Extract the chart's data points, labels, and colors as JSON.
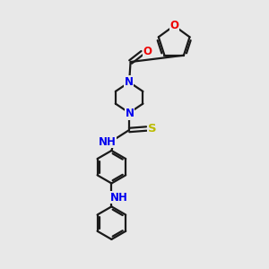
{
  "bg_color": "#e8e8e8",
  "bond_color": "#1a1a1a",
  "N_color": "#0000ee",
  "O_color": "#ee0000",
  "S_color": "#bbbb00",
  "line_width": 1.6,
  "font_size": 8.5,
  "figsize": [
    3.0,
    3.0
  ],
  "dpi": 100,
  "xlim": [
    0,
    10
  ],
  "ylim": [
    0,
    10
  ]
}
